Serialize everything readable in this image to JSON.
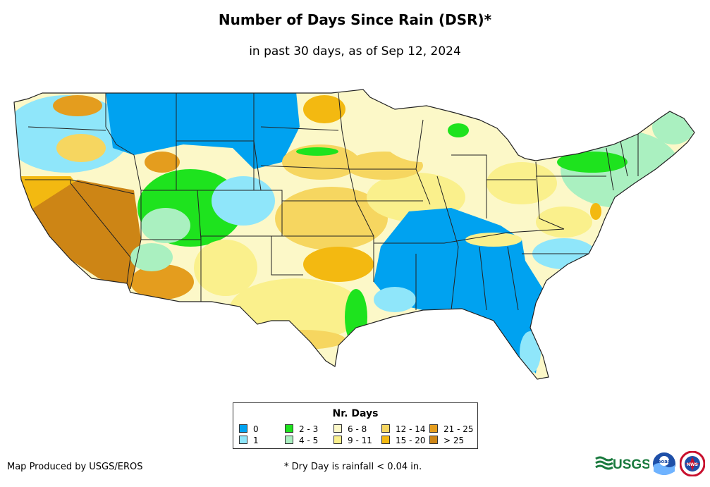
{
  "title": "Number of Days Since Rain (DSR)*",
  "subtitle": "in past 30 days, as of Sep 12, 2024",
  "legend": {
    "title": "Nr. Days",
    "items": [
      {
        "label": "0",
        "color": "#00a2f0"
      },
      {
        "label": "1",
        "color": "#8fe6fa"
      },
      {
        "label": "2 - 3",
        "color": "#1ee31e"
      },
      {
        "label": "4 - 5",
        "color": "#aaf0c0"
      },
      {
        "label": "6 - 8",
        "color": "#fcf8c8"
      },
      {
        "label": "9 - 11",
        "color": "#faf08c"
      },
      {
        "label": "12 - 14",
        "color": "#f6d660"
      },
      {
        "label": "15 - 20",
        "color": "#f3b911"
      },
      {
        "label": "21 - 25",
        "color": "#e49d1e"
      },
      {
        "label": "> 25",
        "color": "#cd8515"
      }
    ]
  },
  "footer": {
    "producer": "Map Produced by USGS/EROS",
    "footnote": "* Dry Day is rainfall < 0.04 in."
  },
  "logos": {
    "usgs_text": "USGS",
    "noaa_text": "noaa",
    "nws_text": "NWS"
  }
}
